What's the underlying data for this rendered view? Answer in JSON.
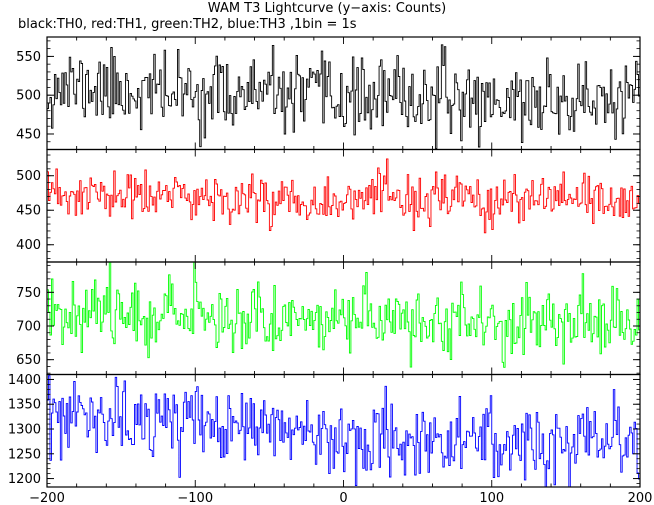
{
  "title": "WAM T3 Lightcurve (y−axis: Counts)",
  "subtitle": "black:TH0, red:TH1, green:TH2, blue:TH3 ,1bin = 1s",
  "chart_data": {
    "type": "line",
    "x_range": [
      -200,
      200
    ],
    "x_ticks": [
      -200,
      -100,
      0,
      100,
      200
    ],
    "x_tick_labels": [
      "−200",
      "−100",
      "0",
      "100",
      "200"
    ],
    "panels": [
      {
        "name": "TH0",
        "color": "#000000",
        "ylim": [
          430,
          575
        ],
        "y_ticks": [
          450,
          500,
          550
        ],
        "mean_profile": [
          [
            -200,
            510
          ],
          [
            -180,
            512
          ],
          [
            -150,
            506
          ],
          [
            -100,
            502
          ],
          [
            -50,
            500
          ],
          [
            0,
            497
          ],
          [
            50,
            496
          ],
          [
            100,
            494
          ],
          [
            150,
            493
          ],
          [
            200,
            492
          ]
        ],
        "noise_sigma": 24,
        "seed": 11
      },
      {
        "name": "TH1",
        "color": "#ff0000",
        "ylim": [
          375,
          538
        ],
        "y_ticks": [
          400,
          450,
          500
        ],
        "mean_profile": [
          [
            -200,
            470
          ],
          [
            -150,
            470
          ],
          [
            -100,
            469
          ],
          [
            -50,
            467
          ],
          [
            0,
            466
          ],
          [
            50,
            465
          ],
          [
            100,
            463
          ],
          [
            150,
            462
          ],
          [
            200,
            461
          ]
        ],
        "noise_sigma": 18,
        "seed": 23
      },
      {
        "name": "TH2",
        "color": "#00ff00",
        "ylim": [
          628,
          795
        ],
        "y_ticks": [
          650,
          700,
          750
        ],
        "mean_profile": [
          [
            -200,
            725
          ],
          [
            -150,
            722
          ],
          [
            -100,
            718
          ],
          [
            -50,
            713
          ],
          [
            0,
            710
          ],
          [
            50,
            708
          ],
          [
            100,
            706
          ],
          [
            150,
            705
          ],
          [
            200,
            704
          ]
        ],
        "noise_sigma": 25,
        "seed": 37
      },
      {
        "name": "TH3",
        "color": "#0000ff",
        "ylim": [
          1183,
          1410
        ],
        "y_ticks": [
          1200,
          1250,
          1300,
          1350,
          1400
        ],
        "mean_profile": [
          [
            -200,
            1320
          ],
          [
            -150,
            1318
          ],
          [
            -100,
            1310
          ],
          [
            -50,
            1300
          ],
          [
            0,
            1290
          ],
          [
            50,
            1282
          ],
          [
            100,
            1275
          ],
          [
            150,
            1268
          ],
          [
            200,
            1262
          ]
        ],
        "noise_sigma": 38,
        "seed": 53
      }
    ]
  }
}
